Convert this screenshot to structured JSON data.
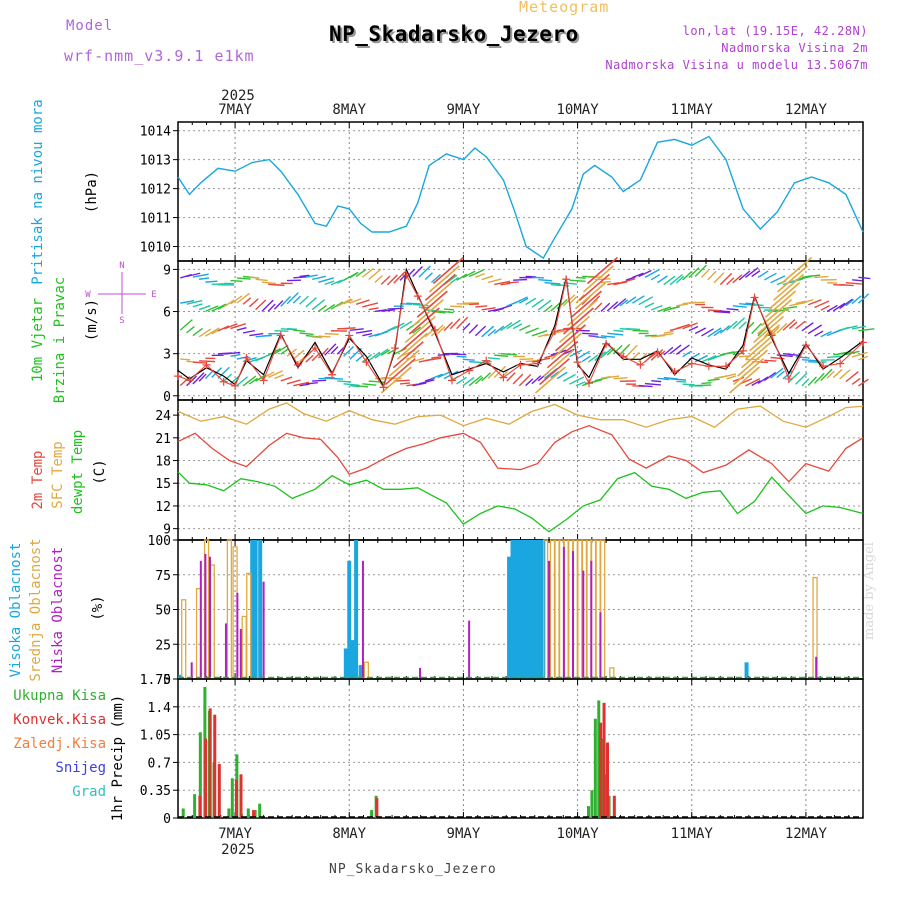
{
  "header": {
    "model_label": "Model",
    "model_name": "wrf-nmm_v3.9.1 e1km",
    "meteogram_label": "Meteogram",
    "station": "NP_Skadarsko_Jezero",
    "coords": "lon,lat (19.15E, 42.28N)",
    "elevation": "Nadmorska Visina 2m",
    "model_elevation": "Nadmorska Visina u modelu 13.5067m"
  },
  "footer": {
    "station": "NP_Skadarsko_Jezero"
  },
  "watermark": "made by Angel",
  "colors": {
    "pressure": "#1aa7e0",
    "temp2m": "#e8483c",
    "sfc": "#e0a840",
    "dew": "#1ec21e",
    "wind_black": "#000000",
    "wind_red": "#e8483c",
    "cloud_high": "#1aa7e0",
    "cloud_mid": "#e0a840",
    "cloud_low": "#b020c0",
    "precip_total": "#30b030",
    "precip_conv": "#e03030",
    "precip_frz": "#f08040",
    "snow": "#4040e0",
    "hail": "#30c0c0",
    "compass": "#c050d0"
  },
  "x_axis": {
    "top_year": "2025",
    "bottom_year": "2025",
    "days": [
      "7MAY",
      "8MAY",
      "9MAY",
      "10MAY",
      "11MAY",
      "12MAY"
    ]
  },
  "compass": {
    "n": "N",
    "s": "S",
    "w": "W",
    "e": "E"
  },
  "panel_labels": {
    "pressure": [
      "Pritisak na nivou mora",
      "(hPa)"
    ],
    "wind": [
      "10m Vjetar",
      "Brzina i Pravac",
      "(m/s)"
    ],
    "temp": [
      "2m Temp",
      "SFC Temp",
      "dewpt Temp",
      "(C)"
    ],
    "cloud": [
      "Visoka Oblacnost",
      "Srednja Oblacnost",
      "Niska Oblacnost",
      "(%)"
    ],
    "precip": [
      "Ukupna Kisa",
      "Konvek.Kisa",
      "Zaledj.Kisa",
      "Snijeg",
      "Grad",
      "1hr Precip (mm)"
    ]
  },
  "chart_data": [
    {
      "type": "line",
      "name": "pressure",
      "ylabel": "(hPa)",
      "ylim": [
        1009.5,
        1014.3
      ],
      "yticks": [
        "1010",
        "1011",
        "1012",
        "1013",
        "1014"
      ],
      "x_days_start": 6.5,
      "x_days_end": 12.5,
      "series": [
        {
          "name": "Pritisak na nivou mora",
          "x": [
            6.5,
            6.6,
            6.7,
            6.85,
            7.0,
            7.15,
            7.3,
            7.4,
            7.55,
            7.7,
            7.8,
            7.9,
            8.0,
            8.1,
            8.2,
            8.35,
            8.5,
            8.6,
            8.7,
            8.85,
            9.0,
            9.1,
            9.2,
            9.35,
            9.45,
            9.55,
            9.7,
            9.8,
            9.95,
            10.05,
            10.15,
            10.3,
            10.4,
            10.55,
            10.7,
            10.85,
            11.0,
            11.15,
            11.3,
            11.45,
            11.6,
            11.75,
            11.9,
            12.05,
            12.2,
            12.35,
            12.5
          ],
          "values": [
            1012.4,
            1011.8,
            1012.2,
            1012.7,
            1012.6,
            1012.9,
            1013.0,
            1012.6,
            1011.8,
            1010.8,
            1010.7,
            1011.4,
            1011.3,
            1010.8,
            1010.5,
            1010.5,
            1010.7,
            1011.5,
            1012.8,
            1013.2,
            1013.0,
            1013.4,
            1013.1,
            1012.3,
            1011.2,
            1010.0,
            1009.6,
            1010.3,
            1011.3,
            1012.5,
            1012.8,
            1012.4,
            1011.9,
            1012.3,
            1013.6,
            1013.7,
            1013.5,
            1013.8,
            1013.0,
            1011.3,
            1010.6,
            1011.2,
            1012.2,
            1012.4,
            1012.2,
            1011.8,
            1010.5
          ]
        }
      ]
    },
    {
      "type": "line",
      "name": "wind",
      "ylabel": "(m/s)",
      "ylim": [
        -0.3,
        9.6
      ],
      "yticks": [
        "0",
        "3",
        "6",
        "9"
      ],
      "x_days_start": 6.5,
      "x_days_end": 12.5,
      "series": [
        {
          "name": "speed",
          "x": [
            6.5,
            6.6,
            6.75,
            6.9,
            7.0,
            7.1,
            7.25,
            7.4,
            7.55,
            7.7,
            7.85,
            8.0,
            8.15,
            8.3,
            8.4,
            8.5,
            8.6,
            8.75,
            8.9,
            9.05,
            9.2,
            9.35,
            9.5,
            9.65,
            9.8,
            9.9,
            10.0,
            10.1,
            10.25,
            10.4,
            10.55,
            10.7,
            10.85,
            11.0,
            11.15,
            11.3,
            11.45,
            11.55,
            11.7,
            11.85,
            12.0,
            12.15,
            12.3,
            12.5
          ],
          "values": [
            1.8,
            1.2,
            2.0,
            1.4,
            0.8,
            2.5,
            1.5,
            4.4,
            2.0,
            3.8,
            1.6,
            4.1,
            2.8,
            0.7,
            3.2,
            9.0,
            7.2,
            4.5,
            1.5,
            1.9,
            2.3,
            1.7,
            2.3,
            2.1,
            5.0,
            8.4,
            2.2,
            1.3,
            3.8,
            2.6,
            2.6,
            3.2,
            1.5,
            2.7,
            2.2,
            1.9,
            3.6,
            7.1,
            4.1,
            1.6,
            3.7,
            1.9,
            2.7,
            3.9
          ]
        }
      ]
    },
    {
      "type": "line",
      "name": "temperature",
      "ylabel": "(C)",
      "ylim": [
        7.5,
        26.0
      ],
      "yticks": [
        "9",
        "12",
        "15",
        "18",
        "21",
        "24"
      ],
      "x_days_start": 6.5,
      "x_days_end": 12.5,
      "series": [
        {
          "name": "SFC Temp",
          "x": [
            6.5,
            6.7,
            6.9,
            7.1,
            7.3,
            7.45,
            7.6,
            7.8,
            8.0,
            8.2,
            8.4,
            8.6,
            8.8,
            9.0,
            9.2,
            9.4,
            9.6,
            9.8,
            10.0,
            10.2,
            10.4,
            10.6,
            10.8,
            11.0,
            11.2,
            11.4,
            11.6,
            11.8,
            12.0,
            12.2,
            12.35,
            12.5
          ],
          "values": [
            24.5,
            23.2,
            23.8,
            22.8,
            24.8,
            25.6,
            24.2,
            23.2,
            24.6,
            23.4,
            22.8,
            23.8,
            24.0,
            22.6,
            23.6,
            22.8,
            24.5,
            25.4,
            24.0,
            23.4,
            23.4,
            22.4,
            23.4,
            23.8,
            22.4,
            24.8,
            25.2,
            23.2,
            22.4,
            23.8,
            25.0,
            25.2
          ]
        },
        {
          "name": "2m Temp",
          "x": [
            6.5,
            6.65,
            6.8,
            6.95,
            7.1,
            7.3,
            7.45,
            7.6,
            7.75,
            7.9,
            8.0,
            8.15,
            8.35,
            8.5,
            8.65,
            8.8,
            9.0,
            9.15,
            9.3,
            9.5,
            9.65,
            9.8,
            9.95,
            10.1,
            10.3,
            10.45,
            10.6,
            10.8,
            10.95,
            11.1,
            11.3,
            11.5,
            11.7,
            11.85,
            12.0,
            12.2,
            12.35,
            12.5
          ],
          "values": [
            20.5,
            21.6,
            19.6,
            18.0,
            17.2,
            20.0,
            21.6,
            21.0,
            20.8,
            18.4,
            16.2,
            17.0,
            18.6,
            19.6,
            20.2,
            21.0,
            21.6,
            20.4,
            17.0,
            16.8,
            17.6,
            20.4,
            21.8,
            22.6,
            21.4,
            18.2,
            17.0,
            18.6,
            18.0,
            16.4,
            17.4,
            19.4,
            17.6,
            15.2,
            17.6,
            16.6,
            19.6,
            21.0
          ]
        },
        {
          "name": "dewpt Temp",
          "x": [
            6.5,
            6.6,
            6.75,
            6.9,
            7.05,
            7.2,
            7.35,
            7.5,
            7.7,
            7.85,
            8.0,
            8.15,
            8.3,
            8.45,
            8.6,
            8.75,
            8.85,
            9.0,
            9.15,
            9.3,
            9.45,
            9.6,
            9.75,
            9.9,
            10.05,
            10.2,
            10.35,
            10.5,
            10.65,
            10.8,
            10.95,
            11.1,
            11.25,
            11.4,
            11.55,
            11.7,
            11.85,
            12.0,
            12.15,
            12.3,
            12.5
          ],
          "values": [
            16.5,
            15.0,
            14.8,
            14.0,
            15.6,
            15.2,
            14.6,
            13.0,
            14.2,
            16.0,
            14.8,
            15.4,
            14.2,
            14.2,
            14.4,
            13.2,
            12.4,
            9.6,
            11.0,
            12.0,
            11.6,
            10.4,
            8.6,
            10.2,
            12.0,
            12.8,
            15.6,
            16.4,
            14.6,
            14.2,
            13.0,
            13.8,
            14.0,
            11.0,
            12.6,
            15.8,
            13.4,
            11.0,
            12.0,
            11.8,
            11.0
          ]
        }
      ]
    },
    {
      "type": "bar",
      "name": "cloud",
      "ylabel": "(%)",
      "ylim": [
        0,
        100
      ],
      "yticks": [
        "0",
        "25",
        "50",
        "75",
        "100"
      ],
      "x_days_start": 6.5,
      "x_days_end": 12.5,
      "series": [
        {
          "name": "Visoka Oblacnost",
          "x": [
            6.52,
            7.15,
            7.18,
            7.22,
            7.97,
            8.0,
            8.03,
            8.06,
            8.1,
            9.4,
            9.43,
            9.46,
            9.49,
            9.52,
            9.55,
            9.58,
            9.61,
            9.64,
            9.67,
            9.7,
            11.48
          ],
          "values": [
            3,
            100,
            100,
            100,
            22,
            85,
            28,
            100,
            10,
            88,
            100,
            100,
            100,
            100,
            100,
            100,
            100,
            100,
            100,
            100,
            12
          ]
        },
        {
          "name": "Srednja Oblacnost",
          "x": [
            6.55,
            6.68,
            6.75,
            6.8,
            6.95,
            7.0,
            7.08,
            7.12,
            8.15,
            9.72,
            9.78,
            9.82,
            9.86,
            9.9,
            9.94,
            9.98,
            10.02,
            10.06,
            10.1,
            10.14,
            10.18,
            10.22,
            10.3,
            12.08
          ],
          "values": [
            57,
            65,
            100,
            82,
            100,
            95,
            45,
            76,
            12,
            100,
            100,
            100,
            100,
            100,
            100,
            100,
            100,
            100,
            100,
            100,
            100,
            100,
            8,
            73
          ]
        },
        {
          "name": "Niska Oblacnost",
          "x": [
            6.62,
            6.7,
            6.74,
            6.78,
            6.92,
            7.02,
            7.05,
            7.25,
            8.12,
            8.62,
            9.05,
            9.75,
            9.88,
            9.96,
            10.05,
            10.12,
            10.2,
            12.09
          ],
          "values": [
            12,
            85,
            90,
            88,
            40,
            62,
            36,
            70,
            85,
            8,
            42,
            85,
            95,
            92,
            78,
            85,
            48,
            16
          ]
        }
      ]
    },
    {
      "type": "bar",
      "name": "precipitation",
      "ylabel": "1hr Precip (mm)",
      "ylim": [
        0,
        1.75
      ],
      "yticks": [
        "0",
        "0.35",
        "0.7",
        "1.05",
        "1.4",
        "1.75"
      ],
      "x_days_start": 6.5,
      "x_days_end": 12.5,
      "series": [
        {
          "name": "Ukupna Kisa",
          "x": [
            6.55,
            6.65,
            6.7,
            6.74,
            6.78,
            6.82,
            6.95,
            6.98,
            7.02,
            7.06,
            7.12,
            7.18,
            7.22,
            8.2,
            8.24,
            10.1,
            10.13,
            10.16,
            10.19,
            10.22,
            10.25,
            10.28
          ],
          "values": [
            0.12,
            0.3,
            1.08,
            1.65,
            1.35,
            0.7,
            0.12,
            0.5,
            0.8,
            0.05,
            0.12,
            0.1,
            0.18,
            0.1,
            0.28,
            0.15,
            0.35,
            1.25,
            1.48,
            1.0,
            0.55,
            0.28
          ]
        },
        {
          "name": "Konvek.Kisa",
          "x": [
            6.67,
            6.72,
            6.76,
            6.8,
            6.84,
            6.99,
            7.03,
            7.14,
            8.22,
            10.18,
            10.21,
            10.24,
            10.3
          ],
          "values": [
            0.28,
            1.0,
            1.38,
            1.3,
            0.68,
            0.48,
            0.55,
            0.1,
            0.25,
            1.2,
            1.45,
            0.95,
            0.28
          ]
        }
      ]
    }
  ]
}
